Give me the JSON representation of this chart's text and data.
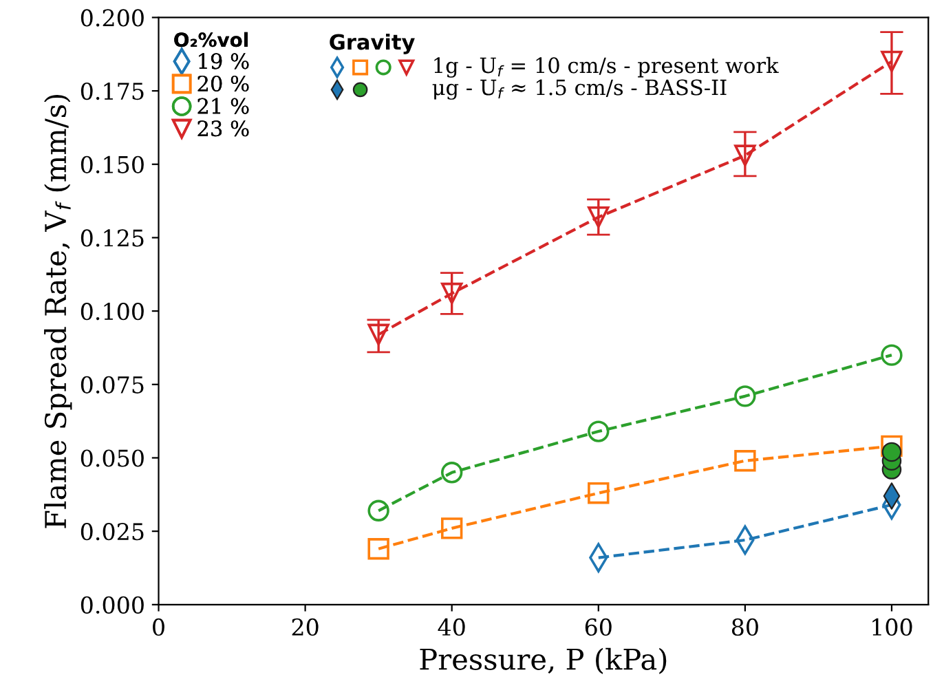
{
  "chart_data": {
    "type": "line",
    "xlabel": "Pressure, P (kPa)",
    "ylabel": "Flame Spread Rate, V$_{f}$ (mm/s)",
    "xlim": [
      0,
      105
    ],
    "xticks": [
      0,
      20,
      40,
      60,
      80,
      100
    ],
    "ylim": [
      0,
      0.2
    ],
    "yticks": [
      {
        "value": 0,
        "label": "0.000"
      },
      0.025,
      {
        "value": 0.05,
        "label": "0.050"
      },
      0.075,
      {
        "value": 0.1,
        "label": "0.100"
      },
      0.125,
      {
        "value": 0.15,
        "label": "0.150"
      },
      0.175,
      {
        "value": 0.2,
        "label": "0.200"
      }
    ],
    "legend": "top left",
    "legend_title": "O₂%vol",
    "grid": false,
    "line_style": "dashed",
    "annotations": [
      "Gravity",
      "1g - U$_{f}$ = 10 cm/s - present work",
      "μg - U$_{f}$ ≈ 1.5 cm/s - BASS-II"
    ],
    "series": [
      {
        "name": "19 %",
        "color": "#1f77b4",
        "marker": "diamond",
        "x": [
          60,
          80,
          100
        ],
        "values": [
          0.016,
          0.022,
          0.034
        ]
      },
      {
        "name": "20 %",
        "color": "#ff7f0e",
        "marker": "square",
        "x": [
          30,
          40,
          60,
          80,
          100
        ],
        "values": [
          0.019,
          0.026,
          0.038,
          0.049,
          0.054
        ]
      },
      {
        "name": "21 %",
        "color": "#2ca02c",
        "marker": "circle",
        "x": [
          30,
          40,
          60,
          80,
          100
        ],
        "values": [
          0.032,
          0.045,
          0.059,
          0.071,
          0.085
        ]
      },
      {
        "name": "23 %",
        "color": "#d62728",
        "marker": "triangle",
        "x": [
          30,
          40,
          60,
          80,
          100
        ],
        "values": [
          0.092,
          0.106,
          0.132,
          0.153,
          0.185
        ],
        "errors": [
          [
            0.086,
            0.097
          ],
          [
            0.099,
            0.113
          ],
          [
            0.126,
            0.138
          ],
          [
            0.146,
            0.161
          ],
          [
            0.174,
            0.195
          ]
        ]
      },
      {
        "type": "scatter",
        "color": "#1f77b4",
        "marker": "diamond",
        "x": [
          100
        ],
        "values": [
          0.037
        ]
      },
      {
        "type": "scatter",
        "color": "#2ca02c",
        "marker": "circle",
        "x": [
          100,
          100,
          100
        ],
        "values": [
          0.046,
          0.049,
          0.052
        ]
      }
    ]
  }
}
